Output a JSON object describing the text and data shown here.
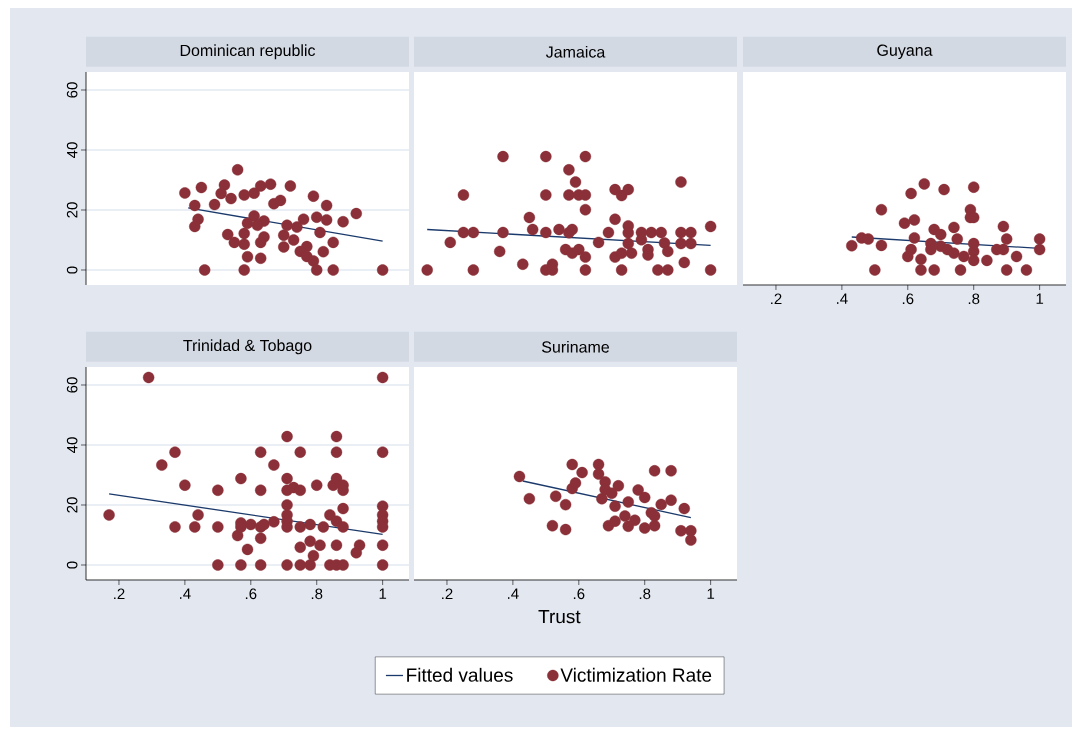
{
  "chart_data": [
    {
      "type": "scatter",
      "title": "Dominican republic",
      "xlim": [
        0.1,
        1.08
      ],
      "ylim": [
        -5,
        66
      ],
      "yticks": [
        0,
        20,
        40,
        60
      ],
      "grid": "y",
      "tick_labels": "y",
      "legend": false,
      "series": [
        {
          "type": "line",
          "color": "#1b3a6b",
          "x": [
            0.41,
            1.0
          ],
          "values": [
            20.7,
            9.6
          ]
        },
        {
          "type": "scatter",
          "marker": "circle",
          "color": "#8b3038",
          "x": [
            0.4,
            0.45,
            0.56,
            0.52,
            0.51,
            0.54,
            0.58,
            0.61,
            0.63,
            0.66,
            0.72,
            0.79,
            0.43,
            0.49,
            0.67,
            0.69,
            0.83,
            0.92,
            0.44,
            0.43,
            0.61,
            0.59,
            0.64,
            0.62,
            0.71,
            0.76,
            0.74,
            0.8,
            0.83,
            0.88,
            0.53,
            0.58,
            0.55,
            0.58,
            0.64,
            0.63,
            0.7,
            0.7,
            0.73,
            0.81,
            0.85,
            0.77,
            0.75,
            0.82,
            0.59,
            0.63,
            0.77,
            0.79,
            0.46,
            0.58,
            0.8,
            0.85,
            1.0
          ],
          "values": [
            25.7,
            27.5,
            33.4,
            28.3,
            25.5,
            23.8,
            25.0,
            25.6,
            28.0,
            28.6,
            28.0,
            24.6,
            21.5,
            21.8,
            22.1,
            23.2,
            21.5,
            18.8,
            16.9,
            14.5,
            18.0,
            15.6,
            16.3,
            14.9,
            14.9,
            16.9,
            14.3,
            17.6,
            16.7,
            16.1,
            11.8,
            12.2,
            9.2,
            8.6,
            11.0,
            9.2,
            11.6,
            7.7,
            10.0,
            12.5,
            9.2,
            7.8,
            6.2,
            6.1,
            4.4,
            3.9,
            4.5,
            3.0,
            0,
            0,
            0,
            0,
            0
          ]
        }
      ]
    },
    {
      "type": "scatter",
      "title": "Jamaica",
      "xlim": [
        0.1,
        1.08
      ],
      "ylim": [
        -5,
        66
      ],
      "yticks": [
        0,
        20,
        40,
        60
      ],
      "grid": "y",
      "tick_labels": false,
      "legend": false,
      "series": [
        {
          "type": "line",
          "color": "#1b3a6b",
          "x": [
            0.14,
            1.0
          ],
          "values": [
            13.5,
            8.2
          ]
        },
        {
          "type": "scatter",
          "marker": "circle",
          "color": "#8b3038",
          "x": [
            0.14,
            0.28,
            0.43,
            0.5,
            0.52,
            0.52,
            0.62,
            0.73,
            0.84,
            0.87,
            1.0,
            0.21,
            0.25,
            0.28,
            0.37,
            0.36,
            0.25,
            0.37,
            0.5,
            0.62,
            0.57,
            0.59,
            0.5,
            0.57,
            0.6,
            0.62,
            0.62,
            0.45,
            0.46,
            0.5,
            0.54,
            0.57,
            0.58,
            0.56,
            0.58,
            0.6,
            0.62,
            0.66,
            0.69,
            0.71,
            0.71,
            0.73,
            0.75,
            0.75,
            0.75,
            0.75,
            0.76,
            0.71,
            0.73,
            0.79,
            0.79,
            0.82,
            0.85,
            0.81,
            0.81,
            0.86,
            0.87,
            0.91,
            0.91,
            0.94,
            0.91,
            0.94,
            0.92,
            1.0
          ],
          "values": [
            0,
            0,
            1.9,
            0,
            1.9,
            0,
            0,
            0,
            0,
            0,
            0,
            9.2,
            12.5,
            12.5,
            12.5,
            6.2,
            25.0,
            37.8,
            37.8,
            37.8,
            33.4,
            29.3,
            25.0,
            25.0,
            25.0,
            25.0,
            20.1,
            17.5,
            13.5,
            12.5,
            13.5,
            12.4,
            13.5,
            6.8,
            5.6,
            6.8,
            4.3,
            9.2,
            12.5,
            16.9,
            26.8,
            24.8,
            26.8,
            14.7,
            12.4,
            8.8,
            5.6,
            4.3,
            5.6,
            12.5,
            10.1,
            12.5,
            12.5,
            6.8,
            5.0,
            9.0,
            6.2,
            29.3,
            12.5,
            12.5,
            8.8,
            8.8,
            2.5,
            14.5
          ]
        }
      ]
    },
    {
      "type": "scatter",
      "title": "Guyana",
      "xlim": [
        0.1,
        1.08
      ],
      "ylim": [
        -5,
        66
      ],
      "xticks": [
        {
          "value": 0.2,
          "label": ".2"
        },
        {
          "value": 0.4,
          "label": ".4"
        },
        {
          "value": 0.6,
          "label": ".6"
        },
        {
          "value": 0.8,
          "label": ".8"
        },
        1
      ],
      "yticks": [
        0,
        20,
        40,
        60
      ],
      "grid": "y",
      "tick_labels": "x",
      "legend": false,
      "series": [
        {
          "type": "line",
          "color": "#1b3a6b",
          "x": [
            0.43,
            1.0
          ],
          "values": [
            11.0,
            7.2
          ]
        },
        {
          "type": "scatter",
          "marker": "circle",
          "color": "#8b3038",
          "x": [
            0.43,
            0.46,
            0.48,
            0.52,
            0.52,
            0.5,
            0.59,
            0.61,
            0.62,
            0.62,
            0.61,
            0.6,
            0.64,
            0.64,
            0.68,
            0.65,
            0.67,
            0.67,
            0.68,
            0.7,
            0.7,
            0.72,
            0.71,
            0.74,
            0.75,
            0.74,
            0.77,
            0.76,
            0.8,
            0.79,
            0.79,
            0.8,
            0.8,
            0.8,
            0.8,
            0.84,
            0.87,
            0.89,
            0.89,
            0.9,
            0.9,
            0.93,
            0.96,
            1.0,
            1.0
          ],
          "values": [
            8.1,
            10.7,
            10.3,
            8.2,
            20.1,
            0,
            15.6,
            25.5,
            16.7,
            10.7,
            6.8,
            4.5,
            3.6,
            0,
            0,
            28.7,
            8.8,
            6.8,
            13.5,
            11.8,
            7.9,
            6.8,
            26.8,
            14.2,
            10.3,
            5.6,
            4.5,
            0,
            27.6,
            20.1,
            17.5,
            17.5,
            8.8,
            6.2,
            3.2,
            3.2,
            6.8,
            6.8,
            14.5,
            10.3,
            0,
            4.5,
            0,
            10.3,
            6.8
          ]
        }
      ]
    },
    {
      "type": "scatter",
      "title": "Trinidad & Tobago",
      "xlim": [
        0.1,
        1.08
      ],
      "ylim": [
        -5,
        66
      ],
      "xticks": [
        {
          "value": 0.2,
          "label": ".2"
        },
        {
          "value": 0.4,
          "label": ".4"
        },
        {
          "value": 0.6,
          "label": ".6"
        },
        {
          "value": 0.8,
          "label": ".8"
        },
        1
      ],
      "yticks": [
        0,
        20,
        40,
        60
      ],
      "grid": "y",
      "legend": false,
      "series": [
        {
          "type": "line",
          "color": "#1b3a6b",
          "x": [
            0.17,
            1.0
          ],
          "values": [
            23.7,
            10.2
          ]
        },
        {
          "type": "scatter",
          "marker": "circle",
          "color": "#8b3038",
          "x": [
            0.17,
            0.29,
            1.0,
            0.33,
            0.37,
            0.4,
            0.37,
            0.43,
            0.44,
            0.5,
            0.5,
            0.5,
            0.57,
            0.56,
            0.57,
            0.57,
            0.59,
            0.57,
            0.6,
            0.63,
            0.63,
            0.63,
            0.63,
            0.64,
            0.63,
            0.67,
            0.67,
            0.71,
            0.71,
            0.71,
            0.71,
            0.71,
            0.71,
            0.71,
            0.71,
            0.73,
            0.75,
            0.75,
            0.75,
            0.75,
            0.75,
            0.78,
            0.79,
            0.78,
            0.78,
            0.8,
            0.81,
            0.82,
            0.84,
            0.85,
            0.86,
            0.86,
            0.86,
            0.86,
            0.86,
            0.84,
            0.86,
            0.88,
            0.88,
            0.88,
            0.88,
            0.88,
            0.92,
            0.93,
            1.0,
            1.0,
            1.0,
            1.0,
            1.0,
            1.0,
            1.0
          ],
          "values": [
            16.7,
            62.5,
            62.5,
            33.3,
            37.6,
            26.6,
            12.7,
            12.7,
            16.7,
            24.9,
            12.7,
            0,
            28.8,
            9.8,
            14.0,
            12.7,
            5.2,
            0,
            13.5,
            37.6,
            24.9,
            8.9,
            12.7,
            13.5,
            0,
            33.3,
            14.4,
            42.8,
            28.8,
            24.9,
            20.0,
            16.7,
            14.6,
            12.7,
            0,
            25.8,
            24.9,
            37.6,
            12.7,
            5.9,
            0,
            7.9,
            3.1,
            0,
            13.5,
            26.6,
            6.6,
            12.7,
            16.7,
            26.6,
            42.8,
            37.6,
            28.8,
            14.6,
            6.6,
            0,
            0,
            0,
            26.6,
            24.9,
            18.8,
            12.7,
            4.1,
            6.6,
            37.6,
            19.6,
            16.7,
            14.6,
            12.7,
            6.6,
            0
          ]
        }
      ]
    },
    {
      "type": "scatter",
      "title": "Suriname",
      "xlabel": "Trust",
      "xlim": [
        0.1,
        1.08
      ],
      "ylim": [
        -5,
        66
      ],
      "xticks": [
        {
          "value": 0.2,
          "label": ".2"
        },
        {
          "value": 0.4,
          "label": ".4"
        },
        {
          "value": 0.6,
          "label": ".6"
        },
        {
          "value": 0.8,
          "label": ".8"
        },
        1
      ],
      "yticks": [
        0,
        20,
        40,
        60
      ],
      "grid": "y",
      "tick_labels": "x",
      "legend": "bottom",
      "series": [
        {
          "type": "line",
          "name": "Fitted values",
          "color": "#1b3a6b",
          "x": [
            0.43,
            0.94
          ],
          "values": [
            28.0,
            15.8
          ]
        },
        {
          "type": "scatter",
          "name": "Victimization Rate",
          "marker": "circle",
          "color": "#8b3038",
          "x": [
            0.42,
            0.45,
            0.52,
            0.53,
            0.56,
            0.56,
            0.58,
            0.58,
            0.59,
            0.61,
            0.66,
            0.66,
            0.68,
            0.67,
            0.68,
            0.7,
            0.72,
            0.71,
            0.69,
            0.71,
            0.74,
            0.75,
            0.75,
            0.77,
            0.78,
            0.8,
            0.8,
            0.82,
            0.83,
            0.83,
            0.83,
            0.88,
            0.85,
            0.88,
            0.92,
            0.91,
            0.94,
            0.94
          ],
          "values": [
            29.5,
            22.1,
            13.1,
            22.9,
            11.8,
            20.1,
            33.5,
            25.5,
            27.3,
            30.8,
            33.5,
            30.3,
            27.7,
            22.1,
            25.2,
            23.9,
            26.4,
            19.6,
            13.1,
            14.6,
            16.3,
            12.9,
            21.0,
            14.9,
            25.0,
            22.5,
            12.3,
            17.4,
            13.1,
            16.3,
            31.4,
            31.4,
            20.2,
            21.6,
            18.8,
            11.4,
            11.4,
            8.3
          ]
        }
      ]
    }
  ]
}
